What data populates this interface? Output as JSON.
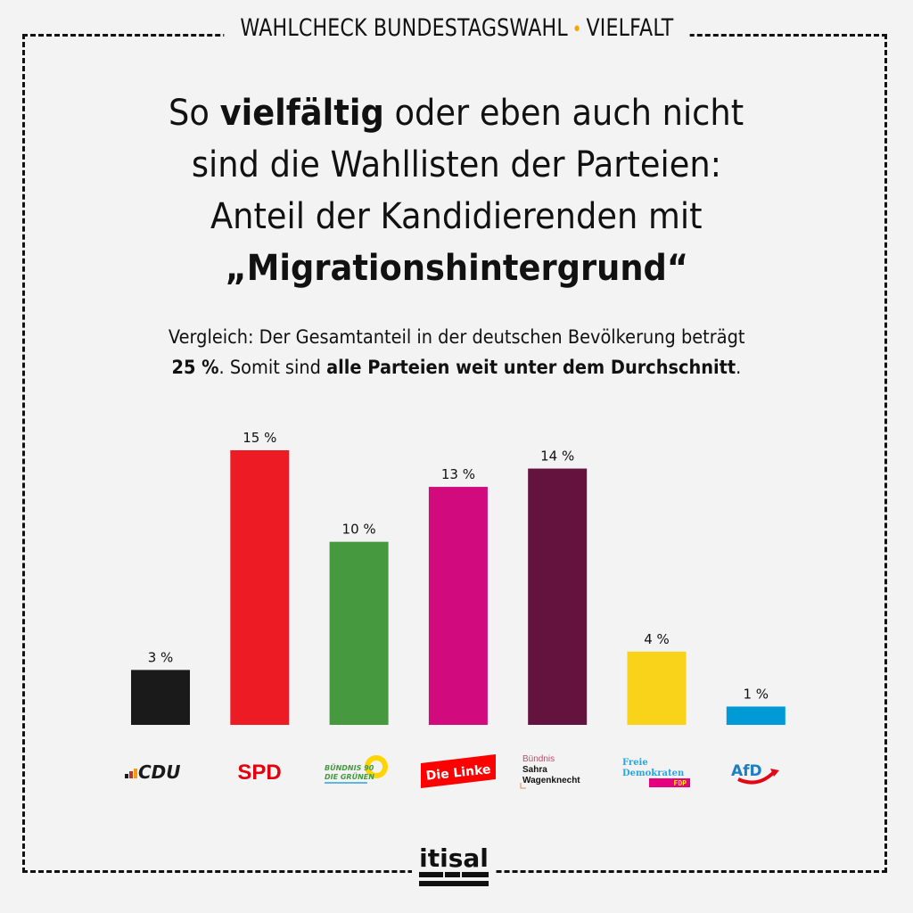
{
  "header": {
    "left": "WAHLCHECK BUNDESTAGSWAHL",
    "separator": "•",
    "right": "VIELFALT"
  },
  "title": {
    "line1_pre": "So ",
    "line1_bold": "vielfältig",
    "line1_post": " oder eben auch nicht",
    "line2": "sind die Wahllisten der Parteien:",
    "line3": "Anteil der Kandidierenden mit",
    "line4": "„Migrationshintergrund“"
  },
  "subtitle": {
    "line1": "Vergleich: Der Gesamtanteil in der deutschen Bevölkerung beträgt",
    "bold1": "25 %",
    "mid": ". Somit sind ",
    "bold2": "alle Parteien weit unter dem Durchschnitt",
    "end": "."
  },
  "chart_data": {
    "type": "bar",
    "title": "Anteil der Kandidierenden mit „Migrationshintergrund“",
    "xlabel": "",
    "ylabel": "",
    "ylim": [
      0,
      15
    ],
    "grid": false,
    "categories": [
      "CDU",
      "SPD",
      "Bündnis 90 Die Grünen",
      "Die Linke",
      "Bündnis Sahra Wagenknecht",
      "FDP",
      "AfD"
    ],
    "values": [
      3,
      15,
      10,
      13,
      14,
      4,
      1
    ],
    "labels": [
      "3 %",
      "15 %",
      "10 %",
      "13 %",
      "14 %",
      "4 %",
      "1 %"
    ],
    "colors": [
      "#1a1a1a",
      "#ed1c24",
      "#46993f",
      "#d10a7e",
      "#64133f",
      "#f9d21a",
      "#009ad6"
    ]
  },
  "logos": {
    "cdu": "CDU",
    "spd": "SPD",
    "gruene_1": "BÜNDNIS 90",
    "gruene_2": "DIE GRÜNEN",
    "linke": "Die Linke",
    "bsw_1": "Bündnis",
    "bsw_2": "Sahra",
    "bsw_3": "Wagenknecht",
    "fdp_1": "Freie",
    "fdp_2": "Demokraten",
    "fdp_3": "FDP",
    "afd": "AfD"
  },
  "footer": {
    "brand": "itisal"
  }
}
